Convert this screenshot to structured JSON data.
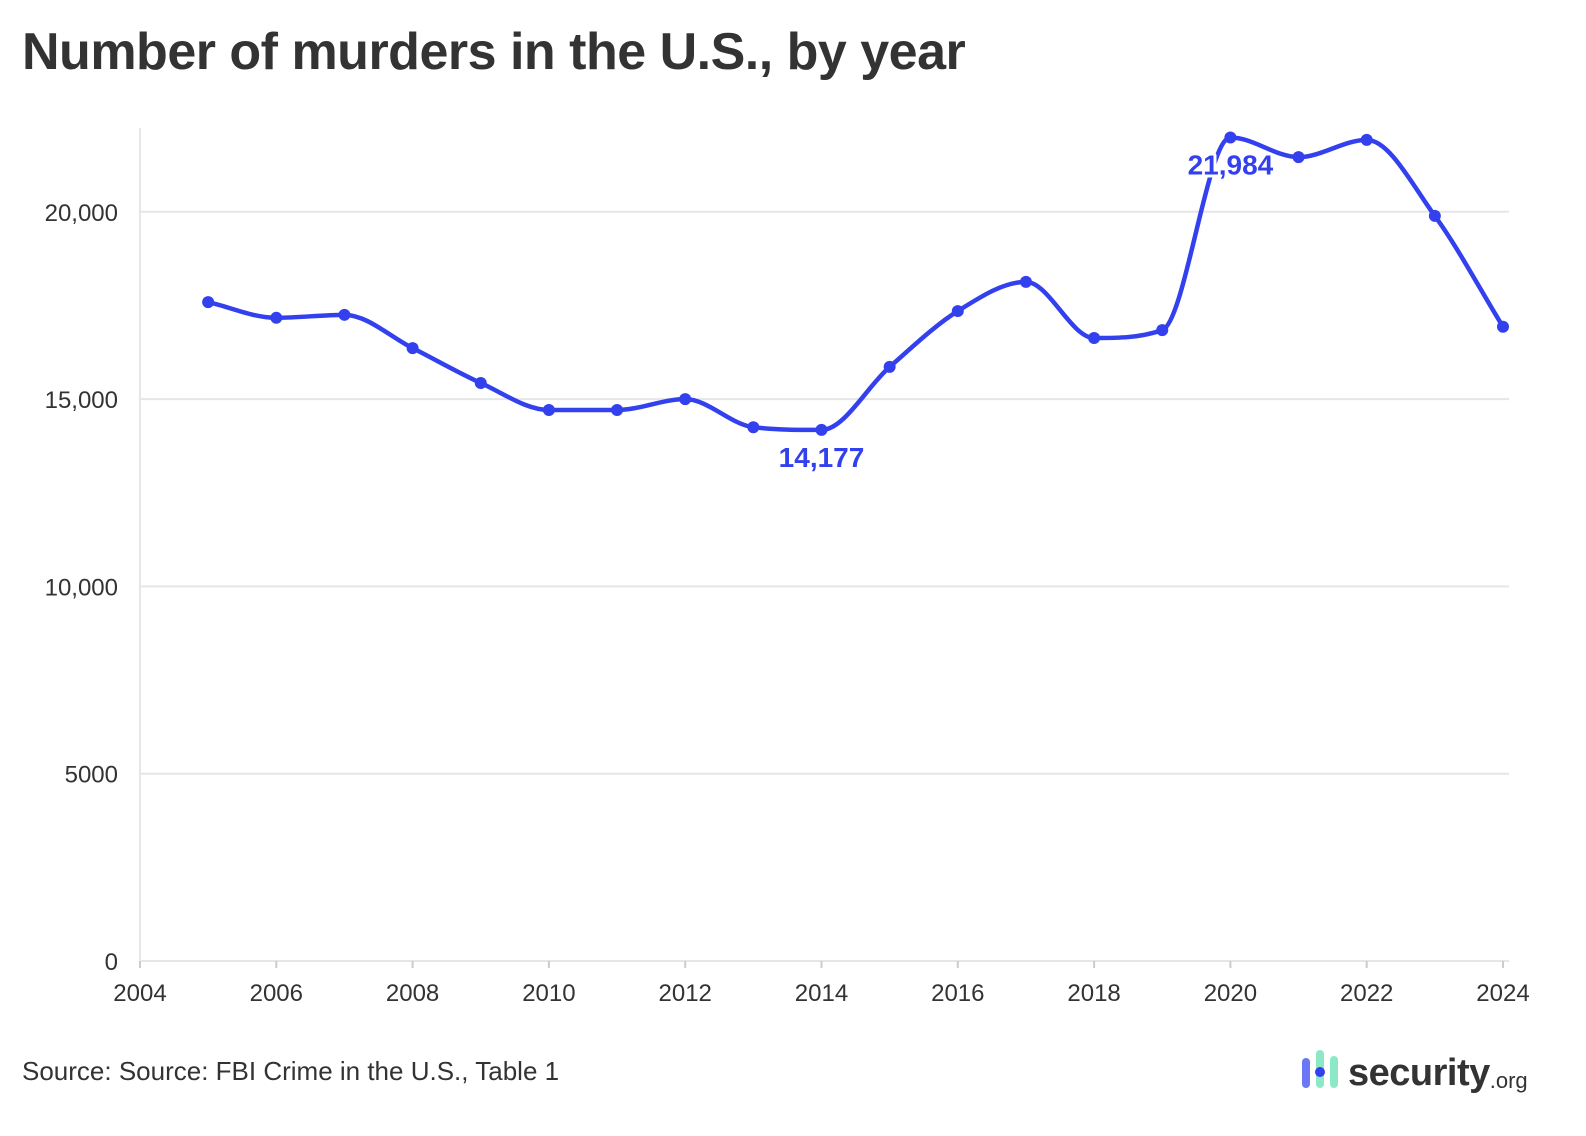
{
  "chart_data": {
    "type": "line",
    "title": "Number of murders in the U.S., by year",
    "xlabel": "",
    "ylabel": "",
    "xlim": [
      2004,
      2024
    ],
    "ylim": [
      0,
      22000
    ],
    "x_ticks": [
      "2004",
      "2006",
      "2008",
      "2010",
      "2012",
      "2014",
      "2016",
      "2018",
      "2020",
      "2022",
      "2024"
    ],
    "y_ticks": [
      "0",
      "5000",
      "10,000",
      "15,000",
      "20,000"
    ],
    "y_tick_values": [
      0,
      5000,
      10000,
      15000,
      20000
    ],
    "x_tick_values": [
      2004,
      2006,
      2008,
      2010,
      2012,
      2014,
      2016,
      2018,
      2020,
      2022,
      2024
    ],
    "grid": "horizontal",
    "smooth": true,
    "x": [
      2005,
      2006,
      2007,
      2008,
      2009,
      2010,
      2011,
      2012,
      2013,
      2014,
      2015,
      2016,
      2017,
      2018,
      2019,
      2020,
      2021,
      2022,
      2023,
      2024
    ],
    "values": [
      17590,
      17170,
      17250,
      16360,
      15430,
      14710,
      14710,
      15000,
      14250,
      14177,
      15860,
      17350,
      18130,
      16630,
      16840,
      21984,
      21460,
      21920,
      19890,
      16930
    ],
    "annotations": [
      {
        "x": 2014,
        "value": 14177,
        "text": "14,177"
      },
      {
        "x": 2020,
        "value": 21984,
        "text": "21,984"
      }
    ],
    "color": "#3340ee"
  },
  "source": "Source: Source: FBI Crime in the U.S., Table 1",
  "logo": {
    "word": "security",
    "tld": ".org"
  }
}
